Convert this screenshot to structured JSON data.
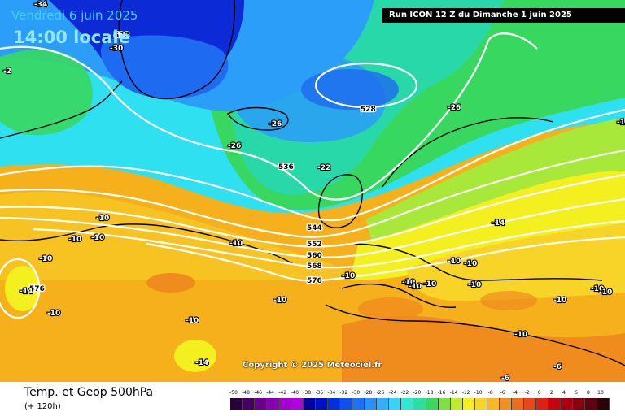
{
  "header": {
    "date": "Vendredi 6 juin 2025",
    "time": "14:00 locale",
    "run": "Run ICON 12 Z du Dimanche 1 juin 2025"
  },
  "footer": {
    "parameter": "Temp. et Geop 500hPa",
    "lead": "(+ 120h)",
    "copyright": "Copyright © 2025 Meteociel.fr"
  },
  "colors": {
    "ocean_deep": "#0c2bd6",
    "ocean_blue": "#1e6af0",
    "mid_blue": "#2a9ef8",
    "cyan": "#2ee0f0",
    "teal": "#28d8a8",
    "green": "#38d860",
    "lime": "#a8e83a",
    "yellow": "#f4f020",
    "gold": "#f8d428",
    "orange": "#f6b01c",
    "deep_orange": "#f08c1e",
    "coast": "#000000",
    "isohypse": "#ffffff"
  },
  "legend": {
    "ticks": [
      "-50",
      "-48",
      "-46",
      "-44",
      "-42",
      "-40",
      "-38",
      "-36",
      "-34",
      "-32",
      "-30",
      "-28",
      "-26",
      "-24",
      "-22",
      "-20",
      "-18",
      "-16",
      "-14",
      "-12",
      "-10",
      "-8",
      "-6",
      "-4",
      "-2",
      "0",
      "2",
      "4",
      "6",
      "8",
      "10"
    ],
    "colors": [
      "#2a003a",
      "#48005e",
      "#6a008a",
      "#8800b0",
      "#a400cc",
      "#b400e0",
      "#0000a0",
      "#0010c8",
      "#0030e0",
      "#0c50f0",
      "#1e70f8",
      "#2a90fa",
      "#30b0fc",
      "#38d4f8",
      "#30e8d8",
      "#28e0a0",
      "#38d860",
      "#80e040",
      "#c0ec30",
      "#f4f020",
      "#f8d428",
      "#f8b820",
      "#f09020",
      "#ec6c1c",
      "#e84818",
      "#e02010",
      "#c80010",
      "#a80010",
      "#880010",
      "#600010",
      "#300008"
    ]
  },
  "isohypse_labels": [
    "528",
    "536",
    "544",
    "552",
    "560",
    "568",
    "576",
    "528",
    "576"
  ],
  "temperature_labels": [
    "-34",
    "-30",
    "-26",
    "-26",
    "-26",
    "-22",
    "-10",
    "-10",
    "-10",
    "-10",
    "-10",
    "-10",
    "-10",
    "-10",
    "-10",
    "-10",
    "-10",
    "-10",
    "-10",
    "-10",
    "-10",
    "-10",
    "-10",
    "-10",
    "-10",
    "-14",
    "-14",
    "-14",
    "-6",
    "-6",
    "-1",
    "-2"
  ]
}
